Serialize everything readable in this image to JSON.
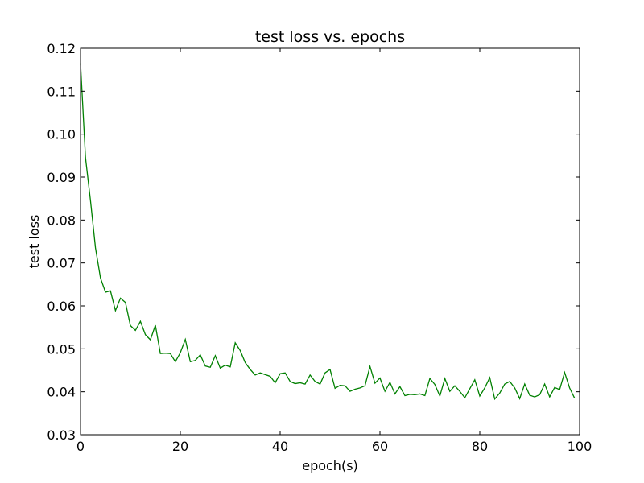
{
  "chart_data": {
    "type": "line",
    "title": "test loss vs. epochs",
    "xlabel": "epoch(s)",
    "ylabel": "test loss",
    "xlim": [
      0,
      100
    ],
    "ylim": [
      0.03,
      0.12
    ],
    "xticks": [
      "0",
      "20",
      "40",
      "60",
      "80",
      "100"
    ],
    "xtick_values": [
      0,
      20,
      40,
      60,
      80,
      100
    ],
    "yticks": [
      "0.03",
      "0.04",
      "0.05",
      "0.06",
      "0.07",
      "0.08",
      "0.09",
      "0.10",
      "0.11",
      "0.12"
    ],
    "ytick_values": [
      0.03,
      0.04,
      0.05,
      0.06,
      0.07,
      0.08,
      0.09,
      0.1,
      0.11,
      0.12
    ],
    "grid": false,
    "series": [
      {
        "color": "#008000",
        "x": [
          0,
          1,
          2,
          3,
          4,
          5,
          6,
          7,
          8,
          9,
          10,
          11,
          12,
          13,
          14,
          15,
          16,
          17,
          18,
          19,
          20,
          21,
          22,
          23,
          24,
          25,
          26,
          27,
          28,
          29,
          30,
          31,
          32,
          33,
          34,
          35,
          36,
          37,
          38,
          39,
          40,
          41,
          42,
          43,
          44,
          45,
          46,
          47,
          48,
          49,
          50,
          51,
          52,
          53,
          54,
          55,
          56,
          57,
          58,
          59,
          60,
          61,
          62,
          63,
          64,
          65,
          66,
          67,
          68,
          69,
          70,
          71,
          72,
          73,
          74,
          75,
          76,
          77,
          78,
          79,
          80,
          81,
          82,
          83,
          84,
          85,
          86,
          87,
          88,
          89,
          90,
          91,
          92,
          93,
          94,
          95,
          96,
          97,
          98,
          99
        ],
        "values": [
          0.1165,
          0.0945,
          0.0845,
          0.0735,
          0.0665,
          0.0632,
          0.0635,
          0.0589,
          0.0618,
          0.0608,
          0.0554,
          0.0543,
          0.0564,
          0.0533,
          0.0521,
          0.0555,
          0.0489,
          0.049,
          0.0489,
          0.047,
          0.0491,
          0.0522,
          0.047,
          0.0473,
          0.0486,
          0.046,
          0.0457,
          0.0484,
          0.0455,
          0.0462,
          0.0458,
          0.0514,
          0.0496,
          0.0468,
          0.0452,
          0.0439,
          0.0444,
          0.044,
          0.0436,
          0.0421,
          0.0442,
          0.0444,
          0.0424,
          0.0419,
          0.0421,
          0.0418,
          0.0439,
          0.0424,
          0.0418,
          0.0444,
          0.0452,
          0.0408,
          0.0415,
          0.0414,
          0.0401,
          0.0406,
          0.0409,
          0.0414,
          0.0459,
          0.042,
          0.0432,
          0.0401,
          0.0422,
          0.0395,
          0.0412,
          0.0391,
          0.0394,
          0.0393,
          0.0395,
          0.0391,
          0.0431,
          0.0417,
          0.039,
          0.0431,
          0.0401,
          0.0414,
          0.0401,
          0.0386,
          0.0407,
          0.0428,
          0.039,
          0.0409,
          0.0433,
          0.0383,
          0.0397,
          0.0418,
          0.0424,
          0.0409,
          0.0384,
          0.0418,
          0.0392,
          0.0388,
          0.0393,
          0.0418,
          0.0388,
          0.041,
          0.0405,
          0.0445,
          0.0409,
          0.0385
        ]
      }
    ]
  }
}
